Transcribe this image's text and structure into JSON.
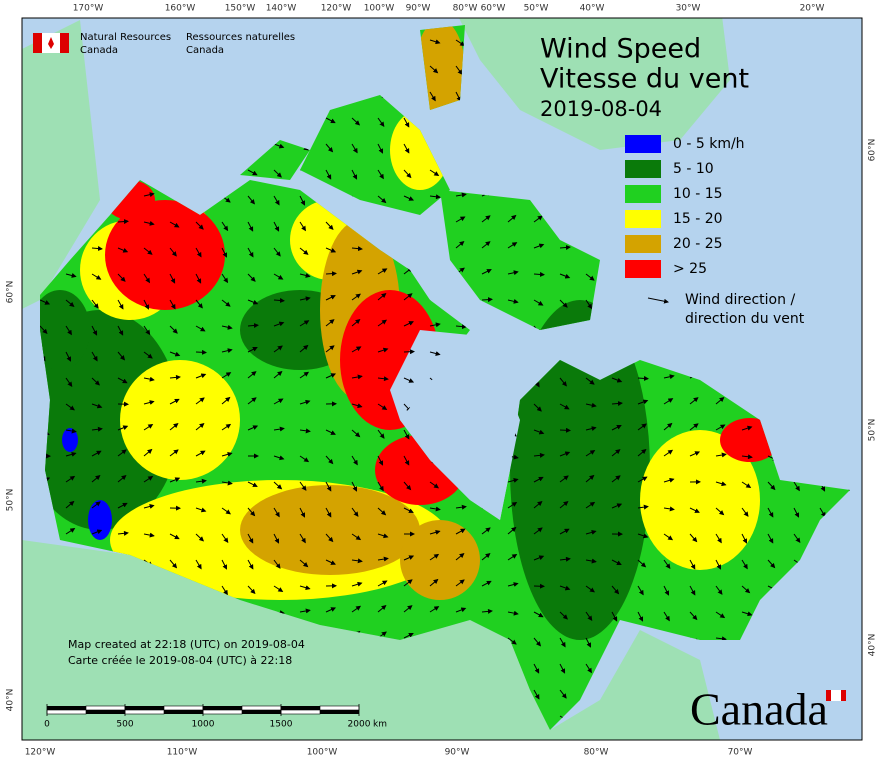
{
  "header": {
    "agency_en": [
      "Natural Resources",
      "Canada"
    ],
    "agency_fr": [
      "Ressources naturelles",
      "Canada"
    ],
    "title": [
      "Wind Speed",
      "Vitesse du vent"
    ],
    "date": "2019-08-04"
  },
  "legend": {
    "items": [
      {
        "label": "0 - 5 km/h",
        "color": "#0000ff"
      },
      {
        "label": "5 - 10",
        "color": "#0a7a0a"
      },
      {
        "label": "10 - 15",
        "color": "#20d020"
      },
      {
        "label": "15 - 20",
        "color": "#ffff00"
      },
      {
        "label": "20 - 25",
        "color": "#d4a300"
      },
      {
        "label": "> 25",
        "color": "#ff0000"
      }
    ],
    "direction": [
      "Wind direction /",
      "direction du vent"
    ]
  },
  "graticule": {
    "top": [
      "170°W",
      "160°W",
      "150°W",
      "140°W",
      "120°W",
      "100°W",
      "90°W",
      "80°W",
      "60°W",
      "50°W",
      "40°W",
      "30°W",
      "20°W"
    ],
    "bottom": [
      "120°W",
      "110°W",
      "100°W",
      "90°W",
      "80°W",
      "70°W"
    ],
    "left": [
      "60°N",
      "50°N",
      "40°N"
    ],
    "right": [
      "60°N",
      "50°N",
      "40°N"
    ]
  },
  "credits": [
    "Map created at 22:18 (UTC) on 2019-08-04",
    "Carte créée le 2019-08-04 (UTC) à 22:18"
  ],
  "scale_bar": {
    "ticks": [
      0,
      500,
      1000,
      1500,
      2000
    ],
    "unit": "km"
  },
  "wordmark": "Canada"
}
